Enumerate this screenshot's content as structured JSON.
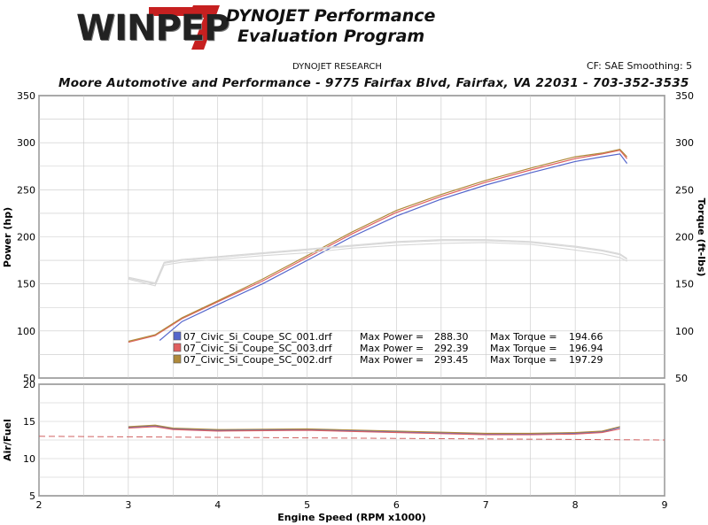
{
  "header": {
    "logo_text": "WINPEP",
    "logo_numeral": "7",
    "title_line1": "DYNOJET Performance",
    "title_line2": "Evaluation Program",
    "research": "DYNOJET RESEARCH",
    "correction": "CF: SAE  Smoothing: 5",
    "shop": "Moore Automotive and Performance - 9775 Fairfax Blvd, Fairfax, VA 22031 - 703-352-3535"
  },
  "colors": {
    "run1": "#5566cc",
    "run2": "#e06060",
    "run3": "#b08a3a",
    "afr_target": "#d06060",
    "grid": "#c8c8c8",
    "torque_tone": "#d8d8d8"
  },
  "legend": [
    {
      "file": "07_Civic_Si_Coupe_SC_001.drf",
      "max_power_label": "Max Power =",
      "max_power": "288.30",
      "max_torque_label": "Max Torque =",
      "max_torque": "194.66",
      "color_key": "run1"
    },
    {
      "file": "07_Civic_Si_Coupe_SC_003.drf",
      "max_power_label": "Max Power =",
      "max_power": "292.39",
      "max_torque_label": "Max Torque =",
      "max_torque": "196.94",
      "color_key": "run2"
    },
    {
      "file": "07_Civic_Si_Coupe_SC_002.drf",
      "max_power_label": "Max Power =",
      "max_power": "293.45",
      "max_torque_label": "Max Torque =",
      "max_torque": "197.29",
      "color_key": "run3"
    }
  ],
  "chart_data": [
    {
      "type": "line",
      "ylabel": "Power (hp)",
      "y2label": "Torque (ft-lbs)",
      "xlim": [
        2,
        9
      ],
      "ylim": [
        50,
        350
      ],
      "y2lim": [
        50,
        350
      ],
      "yticks": [
        50,
        100,
        150,
        200,
        250,
        300,
        350
      ],
      "grid": true,
      "legend_position": "bottom-center",
      "series": [
        {
          "name": "07_Civic_Si_Coupe_SC_001.drf",
          "quantity": "power",
          "color_key": "run1",
          "x": [
            3.35,
            3.6,
            4.0,
            4.5,
            5.0,
            5.5,
            6.0,
            6.5,
            7.0,
            7.5,
            8.0,
            8.3,
            8.5,
            8.58
          ],
          "y": [
            90,
            110,
            128,
            150,
            175,
            200,
            222,
            240,
            255,
            268,
            280,
            285,
            288,
            278
          ]
        },
        {
          "name": "07_Civic_Si_Coupe_SC_003.drf",
          "quantity": "power",
          "color_key": "run2",
          "x": [
            3.0,
            3.3,
            3.6,
            4.0,
            4.5,
            5.0,
            5.5,
            6.0,
            6.5,
            7.0,
            7.5,
            8.0,
            8.3,
            8.5,
            8.58
          ],
          "y": [
            88,
            95,
            113,
            131,
            153,
            178,
            203,
            226,
            243,
            258,
            271,
            283,
            288,
            292,
            283
          ]
        },
        {
          "name": "07_Civic_Si_Coupe_SC_002.drf",
          "quantity": "power",
          "color_key": "run3",
          "x": [
            3.0,
            3.3,
            3.6,
            4.0,
            4.5,
            5.0,
            5.5,
            6.0,
            6.5,
            7.0,
            7.5,
            8.0,
            8.3,
            8.5,
            8.58
          ],
          "y": [
            89,
            96,
            114,
            132,
            155,
            180,
            205,
            228,
            245,
            260,
            273,
            285,
            289,
            293,
            285
          ]
        },
        {
          "name": "07_Civic_Si_Coupe_SC_001.drf",
          "quantity": "torque",
          "color_key": "torque_tone",
          "x": [
            3.0,
            3.3,
            3.4,
            3.6,
            4.0,
            4.5,
            5.0,
            5.5,
            6.0,
            6.5,
            7.0,
            7.5,
            8.0,
            8.3,
            8.5,
            8.58
          ],
          "y": [
            155,
            148,
            170,
            173,
            176,
            180,
            183,
            188,
            191,
            193,
            194,
            192,
            186,
            182,
            178,
            174
          ]
        },
        {
          "name": "07_Civic_Si_Coupe_SC_003.drf",
          "quantity": "torque",
          "color_key": "torque_tone",
          "x": [
            3.0,
            3.3,
            3.4,
            3.6,
            4.0,
            4.5,
            5.0,
            5.5,
            6.0,
            6.5,
            7.0,
            7.5,
            8.0,
            8.3,
            8.5,
            8.58
          ],
          "y": [
            156,
            150,
            172,
            175,
            178,
            182,
            186,
            190,
            194,
            196,
            196,
            194,
            189,
            185,
            181,
            176
          ]
        },
        {
          "name": "07_Civic_Si_Coupe_SC_002.drf",
          "quantity": "torque",
          "color_key": "torque_tone",
          "x": [
            3.0,
            3.3,
            3.4,
            3.6,
            4.0,
            4.5,
            5.0,
            5.5,
            6.0,
            6.5,
            7.0,
            7.5,
            8.0,
            8.3,
            8.5,
            8.58
          ],
          "y": [
            157,
            151,
            173,
            176,
            179,
            183,
            187,
            191,
            195,
            197,
            197,
            195,
            190,
            186,
            182,
            177
          ]
        }
      ]
    },
    {
      "type": "line",
      "ylabel": "Air/Fuel",
      "xlabel": "Engine Speed (RPM x1000)",
      "xlim": [
        2,
        9
      ],
      "ylim": [
        5,
        20
      ],
      "yticks": [
        5,
        10,
        15,
        20
      ],
      "xticks": [
        2,
        3,
        4,
        5,
        6,
        7,
        8,
        9
      ],
      "grid": true,
      "reference_line": {
        "y_start": 13.0,
        "y_end": 12.5,
        "style": "dashed",
        "color_key": "afr_target"
      },
      "series": [
        {
          "name": "07_Civic_Si_Coupe_SC_001.drf",
          "color_key": "run1",
          "x": [
            3.0,
            3.3,
            3.5,
            4.0,
            5.0,
            6.0,
            7.0,
            7.5,
            8.0,
            8.3,
            8.5
          ],
          "y": [
            14.2,
            14.4,
            14.0,
            13.8,
            13.9,
            13.6,
            13.3,
            13.3,
            13.4,
            13.6,
            14.2
          ]
        },
        {
          "name": "07_Civic_Si_Coupe_SC_003.drf",
          "color_key": "run2",
          "x": [
            3.0,
            3.3,
            3.5,
            4.0,
            5.0,
            6.0,
            7.0,
            7.5,
            8.0,
            8.3,
            8.5
          ],
          "y": [
            14.1,
            14.3,
            13.9,
            13.7,
            13.8,
            13.5,
            13.2,
            13.2,
            13.3,
            13.5,
            14.0
          ]
        },
        {
          "name": "07_Civic_Si_Coupe_SC_002.drf",
          "color_key": "run3",
          "x": [
            3.0,
            3.3,
            3.5,
            4.0,
            5.0,
            6.0,
            7.0,
            7.5,
            8.0,
            8.3,
            8.5
          ],
          "y": [
            14.3,
            14.5,
            14.1,
            13.9,
            14.0,
            13.7,
            13.4,
            13.4,
            13.5,
            13.7,
            14.3
          ]
        }
      ]
    }
  ]
}
